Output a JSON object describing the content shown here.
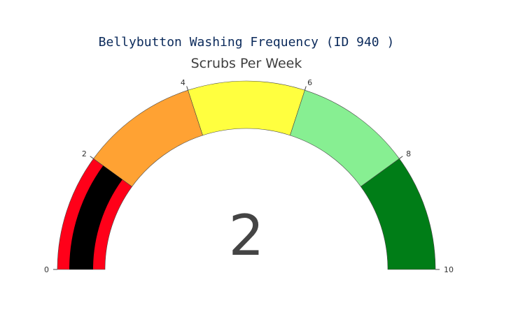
{
  "chart_data": {
    "type": "gauge",
    "title": "Bellybutton Washing Frequency (ID 940 )",
    "subtitle": "Scrubs Per Week",
    "value": 2,
    "value_display": "2",
    "range": [
      0,
      10
    ],
    "ticks": [
      0,
      2,
      4,
      6,
      8,
      10
    ],
    "tick_labels": [
      "0",
      "2",
      "4",
      "6",
      "8",
      "10"
    ],
    "steps": [
      {
        "range": [
          0,
          2
        ],
        "color": "#ff0019"
      },
      {
        "range": [
          2,
          4
        ],
        "color": "#ffa233"
      },
      {
        "range": [
          4,
          6
        ],
        "color": "#ffff3f"
      },
      {
        "range": [
          6,
          8
        ],
        "color": "#87ef92"
      },
      {
        "range": [
          8,
          10
        ],
        "color": "#007d17"
      }
    ],
    "bar_color": "#000000",
    "grid": false
  }
}
